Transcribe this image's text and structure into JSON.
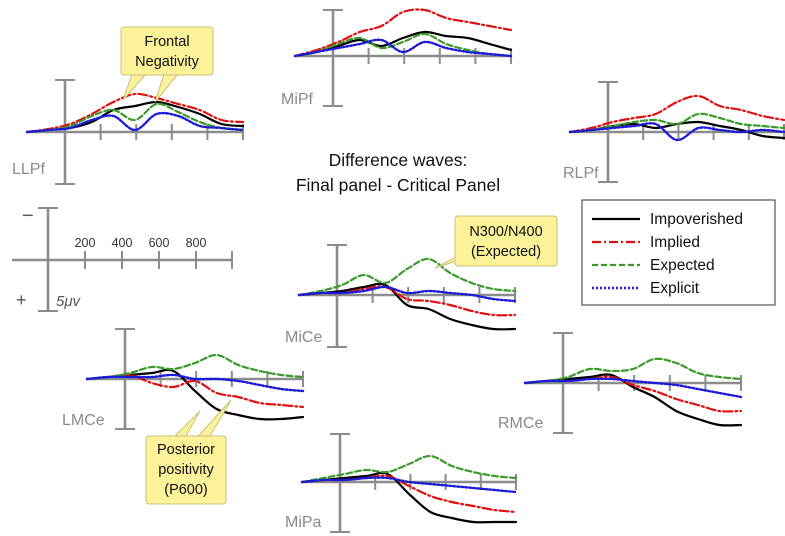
{
  "title_lines": [
    "Difference waves:",
    "Final panel - Critical Panel"
  ],
  "legend": [
    {
      "label": "Impoverished",
      "color": "#000000",
      "dash": "solid"
    },
    {
      "label": "Implied",
      "color": "#e01010",
      "dash": "dashdot"
    },
    {
      "label": "Expected",
      "color": "#3a9a2a",
      "dash": "dashed"
    },
    {
      "label": "Explicit",
      "color": "#1a1ad8",
      "dash": "dotted"
    }
  ],
  "scale": {
    "negative_sign": "−",
    "positive_sign": "+",
    "time_ticks_ms": [
      "200",
      "400",
      "600",
      "800"
    ],
    "amplitude_label": "5μv"
  },
  "callouts": {
    "frontal_negativity": [
      "Frontal",
      "Negativity"
    ],
    "n300": [
      "N300/N400",
      "(Expected)"
    ],
    "posterior": [
      "Posterior",
      "positivity",
      "(P600)"
    ]
  },
  "chart_data": {
    "type": "line",
    "x_units": "ms",
    "y_units": "μV (negative plotted up)",
    "electrodes": [
      {
        "name": "LLPf"
      },
      {
        "name": "MiPf"
      },
      {
        "name": "RLPf"
      },
      {
        "name": "MiCe"
      },
      {
        "name": "LMCe"
      },
      {
        "name": "RMCe"
      },
      {
        "name": "MiPa"
      }
    ],
    "series": [
      "Impoverished",
      "Implied",
      "Expected",
      "Explicit"
    ]
  }
}
